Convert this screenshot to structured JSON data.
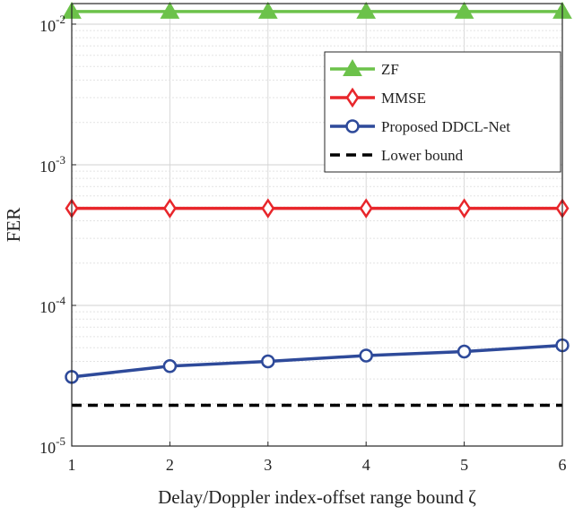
{
  "chart_data": {
    "type": "line",
    "title": "",
    "xlabel": "Delay/Doppler index-offset range bound ζ",
    "ylabel": "FER",
    "x": [
      1,
      2,
      3,
      4,
      5,
      6
    ],
    "xlim": [
      1,
      6
    ],
    "x_ticks": [
      "1",
      "2",
      "3",
      "4",
      "5",
      "6"
    ],
    "ylim": [
      1e-05,
      0.014
    ],
    "y_scale": "log",
    "y_ticks": [
      {
        "value": 1e-05,
        "base": "10",
        "exp": "-5"
      },
      {
        "value": 0.0001,
        "base": "10",
        "exp": "-4"
      },
      {
        "value": 0.001,
        "base": "10",
        "exp": "-3"
      },
      {
        "value": 0.01,
        "base": "10",
        "exp": "-2"
      }
    ],
    "grid": true,
    "legend_position": "upper-right",
    "series": [
      {
        "name": "ZF",
        "color": "#6cc24a",
        "marker": "triangle",
        "line": "solid",
        "values": [
          0.0123,
          0.0123,
          0.0123,
          0.0123,
          0.0123,
          0.0123
        ]
      },
      {
        "name": "MMSE",
        "color": "#e8262b",
        "marker": "diamond",
        "line": "solid",
        "values": [
          0.00049,
          0.00049,
          0.00049,
          0.00049,
          0.00049,
          0.00049
        ]
      },
      {
        "name": "Proposed DDCL-Net",
        "color": "#2e4a9a",
        "marker": "circle",
        "line": "solid",
        "values": [
          3.1e-05,
          3.7e-05,
          4e-05,
          4.4e-05,
          4.7e-05,
          5.2e-05
        ]
      },
      {
        "name": "Lower bound",
        "color": "#000000",
        "marker": "none",
        "line": "dashed",
        "values": [
          1.95e-05,
          1.95e-05,
          1.95e-05,
          1.95e-05,
          1.95e-05,
          1.95e-05
        ]
      }
    ]
  }
}
